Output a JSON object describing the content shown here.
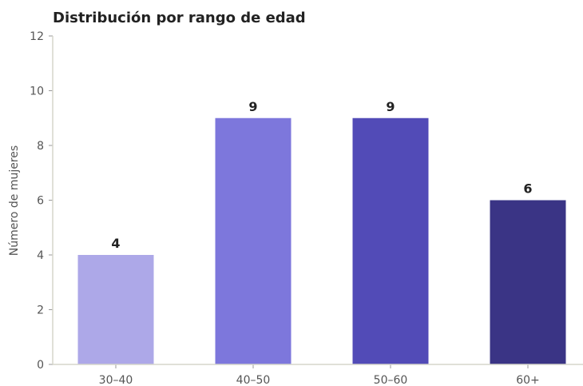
{
  "chart_data": {
    "type": "bar",
    "title": "Distribución por rango de edad",
    "xlabel": "",
    "ylabel": "Número de mujeres",
    "categories": [
      "30–40",
      "40–50",
      "50–60",
      "60+"
    ],
    "values": [
      4,
      9,
      9,
      6
    ],
    "colors": [
      "#ada8e8",
      "#7d77dc",
      "#524bb7",
      "#3a3485"
    ],
    "ylim": [
      0,
      12
    ],
    "yticks": [
      0,
      2,
      4,
      6,
      8,
      10,
      12
    ],
    "grid": false,
    "legend": "none",
    "data_labels": true
  }
}
